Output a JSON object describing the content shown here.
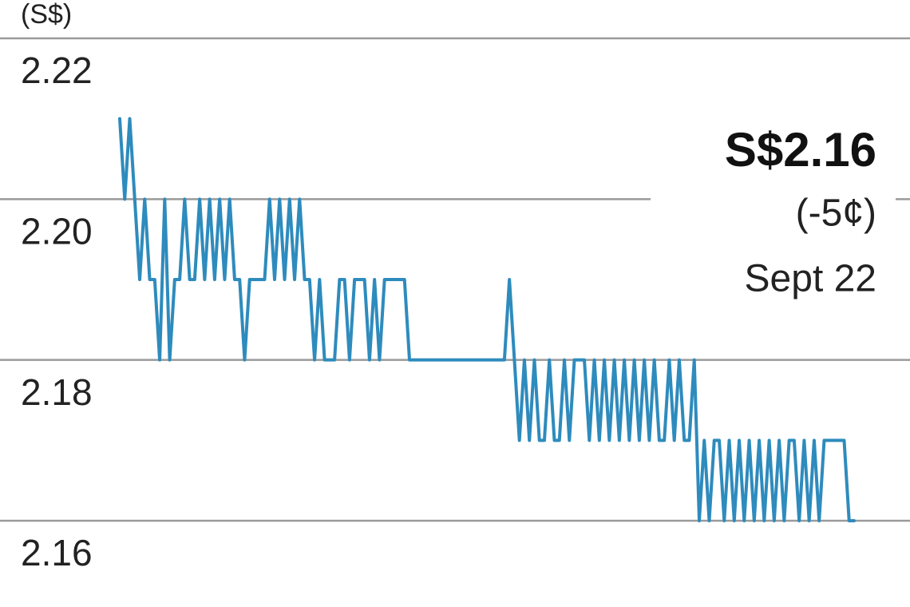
{
  "chart_data": {
    "type": "line",
    "unit": "(S$)",
    "annotation": {
      "price": "S$2.16",
      "change": "(-5¢)",
      "date": "Sept 22"
    },
    "color": "#2e8bbd",
    "ylim": [
      2.16,
      2.22
    ],
    "yticks": [
      2.22,
      {
        "value": 2.2,
        "label": "2.20"
      },
      2.18,
      2.16
    ],
    "grid": true,
    "values": [
      2.21,
      2.2,
      2.21,
      2.2,
      2.19,
      2.2,
      2.19,
      2.19,
      2.18,
      2.2,
      2.18,
      2.19,
      2.19,
      2.2,
      2.19,
      2.19,
      2.2,
      2.19,
      2.2,
      2.19,
      2.2,
      2.19,
      2.2,
      2.19,
      2.19,
      2.18,
      2.19,
      2.19,
      2.19,
      2.19,
      2.2,
      2.19,
      2.2,
      2.19,
      2.2,
      2.19,
      2.2,
      2.19,
      2.19,
      2.18,
      2.19,
      2.18,
      2.18,
      2.18,
      2.19,
      2.19,
      2.18,
      2.19,
      2.19,
      2.19,
      2.18,
      2.19,
      2.18,
      2.19,
      2.19,
      2.19,
      2.19,
      2.19,
      2.18,
      2.18,
      2.18,
      2.18,
      2.18,
      2.18,
      2.18,
      2.18,
      2.18,
      2.18,
      2.18,
      2.18,
      2.18,
      2.18,
      2.18,
      2.18,
      2.18,
      2.18,
      2.18,
      2.18,
      2.19,
      2.18,
      2.17,
      2.18,
      2.17,
      2.18,
      2.17,
      2.17,
      2.18,
      2.17,
      2.17,
      2.18,
      2.17,
      2.18,
      2.18,
      2.18,
      2.17,
      2.18,
      2.17,
      2.18,
      2.17,
      2.18,
      2.17,
      2.18,
      2.17,
      2.18,
      2.17,
      2.18,
      2.17,
      2.18,
      2.17,
      2.17,
      2.18,
      2.17,
      2.18,
      2.17,
      2.17,
      2.18,
      2.16,
      2.17,
      2.16,
      2.17,
      2.17,
      2.16,
      2.17,
      2.16,
      2.17,
      2.16,
      2.17,
      2.16,
      2.17,
      2.16,
      2.17,
      2.16,
      2.17,
      2.16,
      2.17,
      2.17,
      2.16,
      2.17,
      2.16,
      2.17,
      2.16,
      2.17,
      2.17,
      2.17,
      2.17,
      2.17,
      2.16,
      2.16
    ]
  }
}
